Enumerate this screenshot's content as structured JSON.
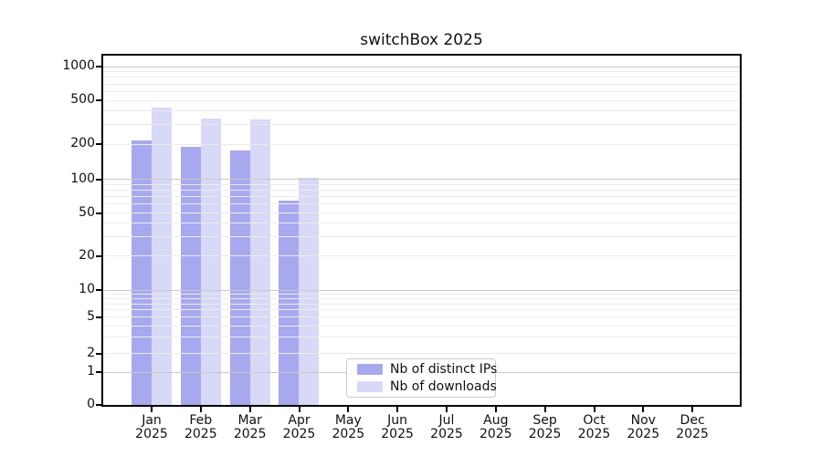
{
  "chart_data": {
    "type": "bar",
    "title": "switchBox 2025",
    "categories": [
      "Jan",
      "Feb",
      "Mar",
      "Apr",
      "May",
      "Jun",
      "Jul",
      "Aug",
      "Sep",
      "Oct",
      "Nov",
      "Dec"
    ],
    "category_subline": "2025",
    "series": [
      {
        "name": "Nb of distinct IPs",
        "color": "#a8a8ee",
        "values": [
          215,
          188,
          178,
          65,
          0,
          0,
          0,
          0,
          0,
          0,
          0,
          0
        ]
      },
      {
        "name": "Nb of downloads",
        "color": "#d8d8f7",
        "values": [
          430,
          340,
          335,
          102,
          0,
          0,
          0,
          0,
          0,
          0,
          0,
          0
        ]
      }
    ],
    "xlabel": "",
    "ylabel": "",
    "y_ticks": [
      0,
      1,
      2,
      5,
      10,
      20,
      50,
      100,
      200,
      500,
      1000
    ],
    "ylim": [
      0,
      1300
    ],
    "y_scale": "asinh-log",
    "grid": "horizontal major and minor, drawn over bars",
    "legend_position": "lower-center-left inside axes"
  }
}
